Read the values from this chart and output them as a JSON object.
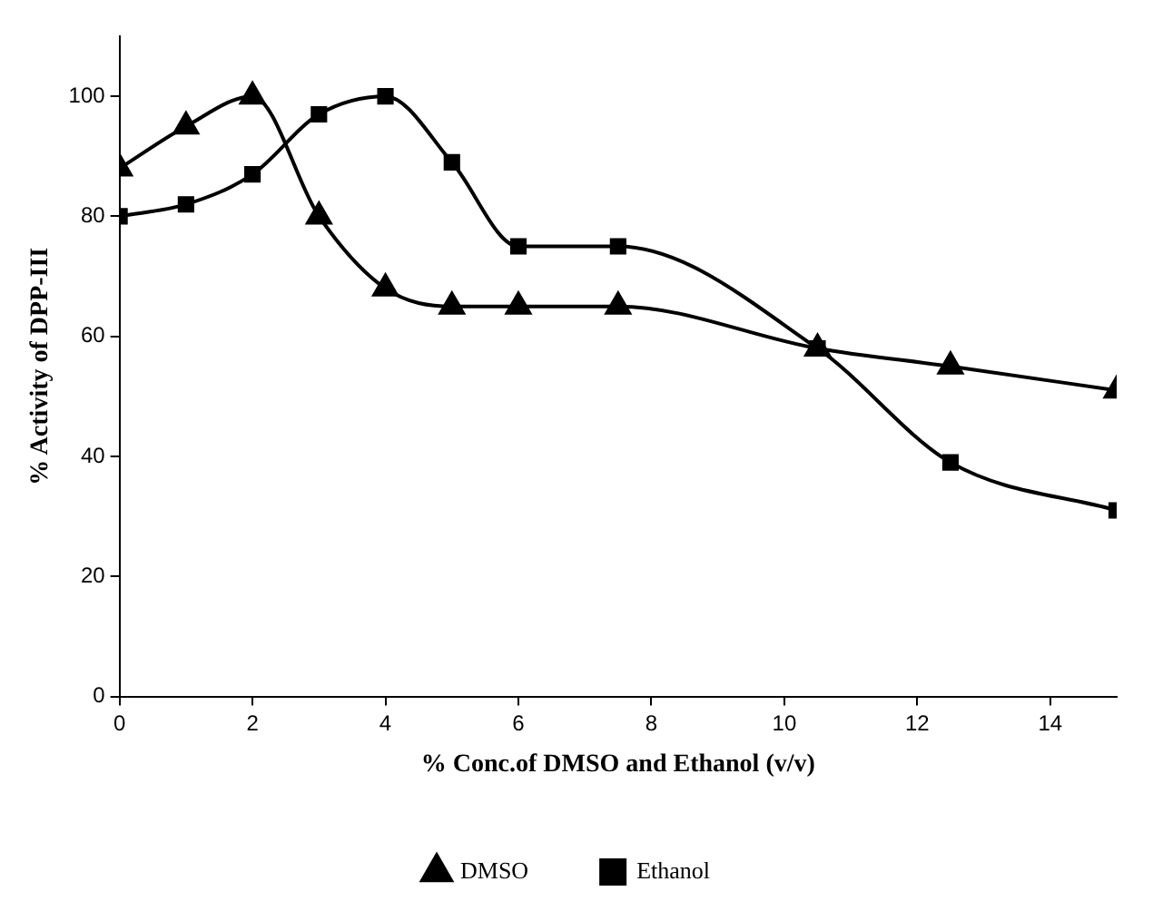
{
  "chart_data": {
    "type": "line",
    "xlabel": "% Conc.of DMSO and Ethanol (v/v)",
    "ylabel": "% Activity of DPP-III",
    "xlim": [
      0,
      15
    ],
    "xticks": [
      0,
      2,
      4,
      6,
      8,
      10,
      12,
      14
    ],
    "ylim": [
      0,
      110
    ],
    "yticks": [
      0,
      20,
      40,
      60,
      80,
      100
    ],
    "grid": false,
    "legend": "bottom",
    "line_style": "solid",
    "series": [
      {
        "name": "DMSO",
        "color": "#000000",
        "marker": "triangle",
        "x": [
          0,
          1,
          2,
          3,
          4,
          5,
          6,
          7.5,
          10.5,
          12.5,
          15
        ],
        "values": [
          88,
          95,
          100,
          80,
          68,
          65,
          65,
          65,
          58,
          55,
          51
        ]
      },
      {
        "name": "Ethanol",
        "color": "#000000",
        "marker": "square",
        "x": [
          0,
          1,
          2,
          3,
          4,
          5,
          6,
          7.5,
          10.5,
          12.5,
          15
        ],
        "values": [
          80,
          82,
          87,
          97,
          100,
          89,
          75,
          75,
          58,
          39,
          31
        ]
      }
    ]
  }
}
